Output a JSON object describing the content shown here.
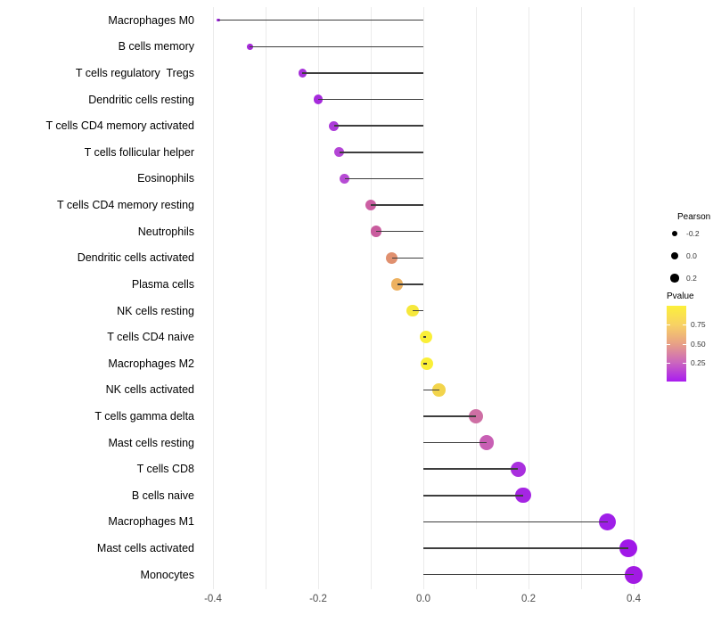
{
  "chart_data": {
    "type": "lollipop",
    "title": "",
    "xlabel": "",
    "ylabel": "",
    "xlim": [
      -0.45,
      0.46
    ],
    "grid": "on",
    "gridline_values": [
      -0.4,
      -0.3,
      -0.2,
      -0.1,
      0.0,
      0.1,
      0.2,
      0.3,
      0.4
    ],
    "x_ticks": [
      {
        "label": "-0.4",
        "value": -0.4
      },
      {
        "label": "-0.2",
        "value": -0.2
      },
      {
        "label": "0.0",
        "value": 0.0
      },
      {
        "label": "0.2",
        "value": 0.2
      },
      {
        "label": "0.4",
        "value": 0.4
      }
    ],
    "points": [
      {
        "label": "Macrophages M0",
        "pearson": -0.39,
        "pvalue": 0.03,
        "color": "#9C1CE0"
      },
      {
        "label": "B cells memory",
        "pearson": -0.33,
        "pvalue": 0.08,
        "color": "#A52BD8"
      },
      {
        "label": "T cells regulatory  Tregs",
        "pearson": -0.23,
        "pvalue": 0.1,
        "color": "#A731DA"
      },
      {
        "label": "Dendritic cells resting",
        "pearson": -0.2,
        "pvalue": 0.1,
        "color": "#A62BDC"
      },
      {
        "label": "T cells CD4 memory activated",
        "pearson": -0.17,
        "pvalue": 0.12,
        "color": "#AC3BD9"
      },
      {
        "label": "T cells follicular helper",
        "pearson": -0.16,
        "pvalue": 0.13,
        "color": "#B445D6"
      },
      {
        "label": "Eosinophils",
        "pearson": -0.15,
        "pvalue": 0.14,
        "color": "#B64BD4"
      },
      {
        "label": "T cells CD4 memory resting",
        "pearson": -0.1,
        "pvalue": 0.3,
        "color": "#CC5FA3"
      },
      {
        "label": "Neutrophils",
        "pearson": -0.09,
        "pvalue": 0.31,
        "color": "#C95C9E"
      },
      {
        "label": "Dendritic cells activated",
        "pearson": -0.06,
        "pvalue": 0.55,
        "color": "#E0906F"
      },
      {
        "label": "Plasma cells",
        "pearson": -0.05,
        "pvalue": 0.65,
        "color": "#EDB160"
      },
      {
        "label": "NK cells resting",
        "pearson": -0.02,
        "pvalue": 0.88,
        "color": "#F6E83C"
      },
      {
        "label": "T cells CD4 naive",
        "pearson": 0.005,
        "pvalue": 0.95,
        "color": "#FAEF38"
      },
      {
        "label": "Macrophages M2",
        "pearson": 0.007,
        "pvalue": 0.95,
        "color": "#FAEF38"
      },
      {
        "label": "NK cells activated",
        "pearson": 0.03,
        "pvalue": 0.8,
        "color": "#F2D44C"
      },
      {
        "label": "T cells gamma delta",
        "pearson": 0.1,
        "pvalue": 0.35,
        "color": "#CE6FA4"
      },
      {
        "label": "Mast cells resting",
        "pearson": 0.12,
        "pvalue": 0.28,
        "color": "#C85FB4"
      },
      {
        "label": "T cells CD8",
        "pearson": 0.18,
        "pvalue": 0.12,
        "color": "#A92FDE"
      },
      {
        "label": "B cells naive",
        "pearson": 0.19,
        "pvalue": 0.1,
        "color": "#A525E3"
      },
      {
        "label": "Macrophages M1",
        "pearson": 0.35,
        "pvalue": 0.02,
        "color": "#9F1FE8"
      },
      {
        "label": "Mast cells activated",
        "pearson": 0.39,
        "pvalue": 0.01,
        "color": "#A018E8"
      },
      {
        "label": "Monocytes",
        "pearson": 0.4,
        "pvalue": 0.01,
        "color": "#A21AE3"
      }
    ],
    "legend": {
      "size": {
        "title": "Pearson",
        "items": [
          {
            "label": "-0.2",
            "value": -0.2
          },
          {
            "label": "0.0",
            "value": 0.0
          },
          {
            "label": "0.2",
            "value": 0.2
          }
        ],
        "dot_color": "#000000"
      },
      "color": {
        "title": "Pvalue",
        "ticks": [
          {
            "label": "0.75",
            "value": 0.75
          },
          {
            "label": "0.50",
            "value": 0.5
          },
          {
            "label": "0.25",
            "value": 0.25
          }
        ],
        "gradient_top_to_bottom": [
          "#FCF03A",
          "#F8D264",
          "#E8A186",
          "#CB66BE",
          "#A91CF0"
        ]
      }
    },
    "colors": {
      "stem": "#3d3d3d",
      "gridline": "#ebebeb",
      "axis_text": "#4d4d4d",
      "category_text": "#000000",
      "background": "#ffffff"
    }
  }
}
